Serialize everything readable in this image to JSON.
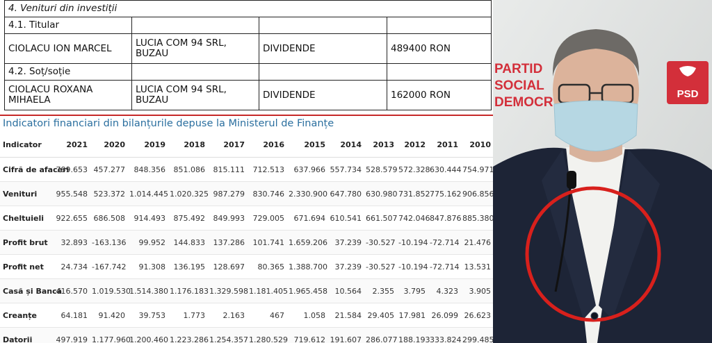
{
  "declaration": {
    "section_title": "4. Venituri din investiții",
    "groups": [
      {
        "label": "4.1. Titular",
        "name": "CIOLACU ION MARCEL",
        "source": "LUCIA COM 94 SRL, BUZAU",
        "type": "DIVIDENDE",
        "amount": "489400 RON"
      },
      {
        "label": "4.2. Soț/soție",
        "name": "CIOLACU ROXANA MIHAELA",
        "source": "LUCIA COM 94 SRL, BUZAU",
        "type": "DIVIDENDE",
        "amount": "162000 RON"
      }
    ]
  },
  "financials": {
    "title": "Indicatori financiari din bilanțurile depuse la Ministerul de Finanțe",
    "header": [
      "Indicator",
      "2021",
      "2020",
      "2019",
      "2018",
      "2017",
      "2016",
      "2015",
      "2014",
      "2013",
      "2012",
      "2011",
      "2010"
    ],
    "rows": [
      [
        "Cifră de afaceri",
        "789.653",
        "457.277",
        "848.356",
        "851.086",
        "815.111",
        "712.513",
        "637.966",
        "557.734",
        "528.579",
        "572.328",
        "630.444",
        "754.971"
      ],
      [
        "Venituri",
        "955.548",
        "523.372",
        "1.014.445",
        "1.020.325",
        "987.279",
        "830.746",
        "2.330.900",
        "647.780",
        "630.980",
        "731.852",
        "775.162",
        "906.856"
      ],
      [
        "Cheltuieli",
        "922.655",
        "686.508",
        "914.493",
        "875.492",
        "849.993",
        "729.005",
        "671.694",
        "610.541",
        "661.507",
        "742.046",
        "847.876",
        "885.380"
      ],
      [
        "Profit brut",
        "32.893",
        "-163.136",
        "99.952",
        "144.833",
        "137.286",
        "101.741",
        "1.659.206",
        "37.239",
        "-30.527",
        "-10.194",
        "-72.714",
        "21.476"
      ],
      [
        "Profit net",
        "24.734",
        "-167.742",
        "91.308",
        "136.195",
        "128.697",
        "80.365",
        "1.388.700",
        "37.239",
        "-30.527",
        "-10.194",
        "-72.714",
        "13.531"
      ],
      [
        "Casă și Bancă",
        "416.570",
        "1.019.530",
        "1.514.380",
        "1.176.183",
        "1.329.598",
        "1.181.405",
        "1.965.458",
        "10.564",
        "2.355",
        "3.795",
        "4.323",
        "3.905"
      ],
      [
        "Creanțe",
        "64.181",
        "91.420",
        "39.753",
        "1.773",
        "2.163",
        "467",
        "1.058",
        "21.584",
        "29.405",
        "17.981",
        "26.099",
        "26.623"
      ],
      [
        "Datorii",
        "497.919",
        "1.177.960",
        "1.200.460",
        "1.223.286",
        "1.254.357",
        "1.280.529",
        "719.612",
        "191.607",
        "286.077",
        "188.193",
        "333.824",
        "299.485"
      ]
    ]
  },
  "photo": {
    "backdrop_text": [
      "PARTID",
      "SOCIAL",
      "DEMOCR"
    ],
    "logo_text": "PSD",
    "colors": {
      "brand_red": "#d32f3a",
      "circle": "#d8201c",
      "jacket": "#1d2436"
    }
  }
}
